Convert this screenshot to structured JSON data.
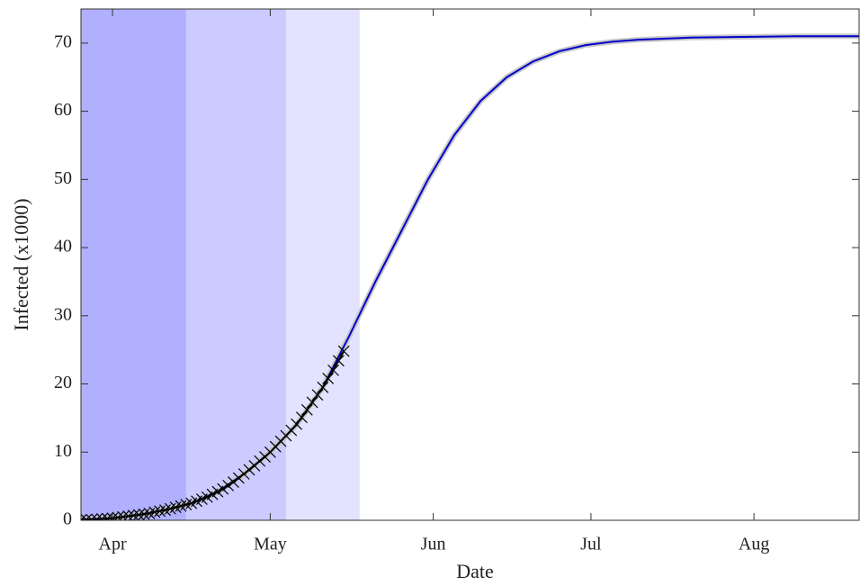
{
  "chart_data": {
    "type": "line",
    "xlabel": "Date",
    "ylabel": "Infected (x1000)",
    "xlim": [
      -6,
      142
    ],
    "ylim": [
      0,
      75
    ],
    "xticks": [
      {
        "value": 0,
        "label": "Apr"
      },
      {
        "value": 30,
        "label": "May"
      },
      {
        "value": 61,
        "label": "Jun"
      },
      {
        "value": 91,
        "label": "Jul"
      },
      {
        "value": 122,
        "label": "Aug"
      }
    ],
    "yticks": [
      0,
      10,
      20,
      30,
      40,
      50,
      60,
      70
    ],
    "regions": [
      {
        "start": -6,
        "end": 14,
        "color": "#b0b0ff"
      },
      {
        "start": 14,
        "end": 33,
        "color": "#cbcbff"
      },
      {
        "start": 33,
        "end": 47,
        "color": "#e3e3ff"
      }
    ],
    "series": [
      {
        "color": "#0000cc",
        "band_color": "#c8c8c8",
        "x": [
          -6,
          0,
          5,
          10,
          15,
          20,
          25,
          30,
          35,
          40,
          45,
          50,
          55,
          60,
          65,
          70,
          75,
          80,
          85,
          90,
          95,
          100,
          110,
          120,
          130,
          142
        ],
        "values": [
          0.1,
          0.3,
          0.8,
          1.5,
          2.5,
          4.2,
          6.8,
          10,
          14,
          19.5,
          27,
          35,
          42.5,
          50,
          56.5,
          61.5,
          65,
          67.3,
          68.8,
          69.7,
          70.2,
          70.5,
          70.8,
          70.9,
          71,
          71
        ]
      },
      {
        "color": "#000000",
        "marker": "x",
        "x": [
          -6,
          -5,
          -4,
          -3,
          -2,
          -1,
          0,
          1,
          2,
          3,
          4,
          5,
          6,
          7,
          8,
          9,
          10,
          11,
          12,
          13,
          14,
          15,
          16,
          17,
          18,
          19,
          20,
          21,
          22,
          23,
          24,
          25,
          26,
          27,
          28,
          29,
          30,
          31,
          32,
          33,
          34,
          35,
          36,
          37,
          38,
          39,
          40,
          41,
          42,
          43,
          44
        ],
        "values": [
          0.05,
          0.1,
          0.1,
          0.15,
          0.2,
          0.25,
          0.3,
          0.4,
          0.5,
          0.6,
          0.7,
          0.8,
          0.9,
          1.0,
          1.2,
          1.35,
          1.5,
          1.7,
          1.9,
          2.1,
          2.3,
          2.5,
          2.8,
          3.1,
          3.4,
          3.8,
          4.2,
          4.6,
          5.1,
          5.6,
          6.2,
          6.8,
          7.4,
          8.0,
          8.7,
          9.3,
          10.0,
          10.8,
          11.6,
          12.4,
          13.2,
          14.1,
          15.1,
          16.2,
          17.3,
          18.4,
          19.5,
          20.8,
          22.0,
          23.4,
          24.8
        ]
      }
    ]
  }
}
